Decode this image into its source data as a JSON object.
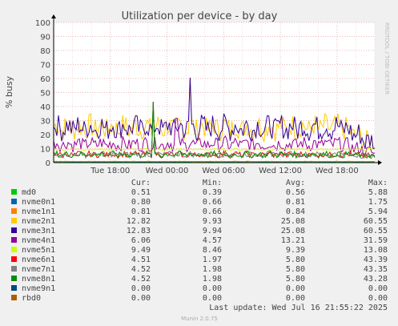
{
  "chart_data": {
    "type": "line",
    "title": "Utilization per device - by day",
    "ylabel": "% busy",
    "watermark": "RRDTOOL / TOBI OETIKER",
    "ylim": [
      0,
      100
    ],
    "yticks": [
      0,
      10,
      20,
      30,
      40,
      50,
      60,
      70,
      80,
      90,
      100
    ],
    "x_ticks": [
      "Tue 18:00",
      "Wed 00:00",
      "Wed 06:00",
      "Wed 12:00",
      "Wed 18:00"
    ],
    "x_tick_hours": [
      6,
      12,
      18,
      24,
      30
    ],
    "x_range_hours": [
      0,
      34
    ],
    "grid": true,
    "colors": {
      "background": "#f0f0f0",
      "plot": "#ffffff",
      "grid_minor": "#eecccc",
      "grid_major": "#e5a0a0",
      "axis": "#000000",
      "text": "#444444"
    },
    "legend_headers": {
      "cur": "Cur:",
      "min": "Min:",
      "avg": "Avg:",
      "max": "Max:"
    },
    "series": [
      {
        "name": "md0",
        "color": "#00cc00",
        "cur": "0.51",
        "min": "0.39",
        "avg": "0.56",
        "max": "5.88"
      },
      {
        "name": "nvme0n1",
        "color": "#0066b3",
        "cur": "0.80",
        "min": "0.66",
        "avg": "0.81",
        "max": "1.75"
      },
      {
        "name": "nvme1n1",
        "color": "#ff8000",
        "cur": "0.81",
        "min": "0.66",
        "avg": "0.84",
        "max": "5.94"
      },
      {
        "name": "nvme2n1",
        "color": "#ffcc00",
        "cur": "12.82",
        "min": "9.93",
        "avg": "25.08",
        "max": "60.55"
      },
      {
        "name": "nvme3n1",
        "color": "#330099",
        "cur": "12.83",
        "min": "9.94",
        "avg": "25.08",
        "max": "60.55"
      },
      {
        "name": "nvme4n1",
        "color": "#990099",
        "cur": "6.06",
        "min": "4.57",
        "avg": "13.21",
        "max": "31.59"
      },
      {
        "name": "nvme5n1",
        "color": "#ccff00",
        "cur": "9.49",
        "min": "8.46",
        "avg": "9.39",
        "max": "13.08"
      },
      {
        "name": "nvme6n1",
        "color": "#ff0000",
        "cur": "4.51",
        "min": "1.97",
        "avg": "5.80",
        "max": "43.39"
      },
      {
        "name": "nvme7n1",
        "color": "#808080",
        "cur": "4.52",
        "min": "1.98",
        "avg": "5.80",
        "max": "43.35"
      },
      {
        "name": "nvme8n1",
        "color": "#008f00",
        "cur": "4.52",
        "min": "1.98",
        "avg": "5.80",
        "max": "43.28"
      },
      {
        "name": "nvme9n1",
        "color": "#00487d",
        "cur": "0.00",
        "min": "0.00",
        "avg": "0.00",
        "max": "0.00"
      },
      {
        "name": "rbd0",
        "color": "#b35a00",
        "cur": "0.00",
        "min": "0.00",
        "avg": "0.00",
        "max": "0.00"
      }
    ],
    "last_update": "Last update: Wed Jul 16 21:55:22 2025",
    "footer": "Munin 2.0.75"
  }
}
